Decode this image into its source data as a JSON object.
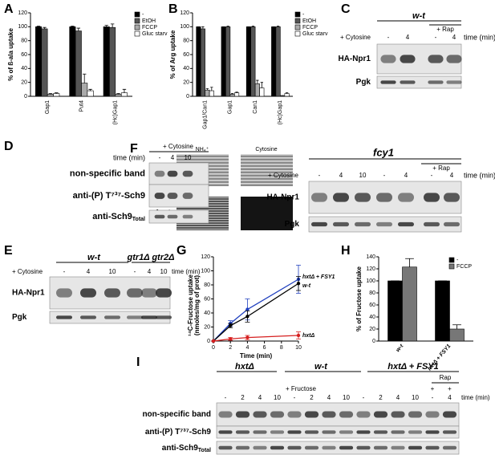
{
  "chart_data": [
    {
      "type": "bar",
      "label": "A",
      "ylabel": "% of ß-ala uptake",
      "categories": [
        "Gap1",
        "Put4",
        "(Hc)Gap1"
      ],
      "series": [
        {
          "name": "-",
          "color": "#000000",
          "values": [
            100,
            100,
            100
          ],
          "errors": [
            1,
            1,
            2
          ]
        },
        {
          "name": "EtOH",
          "color": "#555555",
          "values": [
            97,
            94,
            99
          ],
          "errors": [
            2,
            4,
            5
          ]
        },
        {
          "name": "FCCP",
          "color": "#aaaaaa",
          "values": [
            3,
            19,
            3
          ],
          "errors": [
            1,
            13,
            1
          ]
        },
        {
          "name": "Gluc starv",
          "color": "#ffffff",
          "values": [
            4,
            8,
            5
          ],
          "errors": [
            1,
            2,
            5
          ]
        }
      ],
      "ylim": [
        0,
        120
      ],
      "yticks": [
        0,
        20,
        40,
        60,
        80,
        100,
        120
      ],
      "legend": "right"
    },
    {
      "type": "bar",
      "label": "B",
      "ylabel": "% of Arg uptake",
      "categories": [
        "Gap1/Can1",
        "Gap1",
        "Can1",
        "(Hc)Gap1"
      ],
      "series": [
        {
          "name": "-",
          "color": "#000000",
          "values": [
            100,
            100,
            100,
            100
          ],
          "errors": [
            0,
            0,
            0,
            0
          ]
        },
        {
          "name": "EtOH",
          "color": "#555555",
          "values": [
            97,
            100,
            100,
            100
          ],
          "errors": [
            3,
            1,
            1,
            1
          ]
        },
        {
          "name": "FCCP",
          "color": "#aaaaaa",
          "values": [
            9,
            3,
            18,
            1
          ],
          "errors": [
            2,
            1,
            5,
            0
          ]
        },
        {
          "name": "Gluc starv",
          "color": "#ffffff",
          "values": [
            8,
            5,
            12,
            4
          ],
          "errors": [
            5,
            1,
            8,
            1
          ]
        }
      ],
      "ylim": [
        0,
        120
      ],
      "yticks": [
        0,
        20,
        40,
        60,
        80,
        100,
        120
      ],
      "legend": "right"
    },
    {
      "type": "line",
      "label": "G",
      "ylabel": [
        "¹⁴C-Fructose uptake",
        "(nmoles/mg of prot)"
      ],
      "xlabel": "Time (min)",
      "x": [
        0,
        2,
        4,
        10
      ],
      "xlim": [
        0,
        10
      ],
      "xticks": [
        0,
        2,
        4,
        6,
        8,
        10
      ],
      "series": [
        {
          "name": "hxtΔ + FSY1",
          "color": "#1f3fbf",
          "values": [
            0,
            25,
            45,
            88
          ],
          "errors": [
            0,
            4,
            15,
            20
          ]
        },
        {
          "name": "w-t",
          "color": "#000000",
          "values": [
            0,
            22,
            35,
            82
          ],
          "errors": [
            0,
            3,
            8,
            10
          ]
        },
        {
          "name": "hxtΔ",
          "color": "#d62020",
          "values": [
            0,
            3,
            5,
            8
          ],
          "errors": [
            0,
            2,
            3,
            5
          ]
        }
      ],
      "ylim": [
        0,
        120
      ],
      "yticks": [
        0,
        20,
        40,
        60,
        80,
        100,
        120
      ]
    },
    {
      "type": "bar",
      "label": "H",
      "ylabel": "% of Fructose uptake",
      "categories": [
        "w-t",
        "hxtΔ + FSY1"
      ],
      "series": [
        {
          "name": "-",
          "color": "#000000",
          "values": [
            100,
            100
          ],
          "errors": [
            0,
            0
          ]
        },
        {
          "name": "FCCP",
          "color": "#777777",
          "values": [
            123,
            20
          ],
          "errors": [
            14,
            7
          ]
        }
      ],
      "ylim": [
        0,
        140
      ],
      "yticks": [
        0,
        20,
        40,
        60,
        80,
        100,
        120,
        140
      ],
      "legend": "top-right"
    }
  ],
  "blots": [
    {
      "label": "C",
      "headers": [
        "w-t"
      ],
      "extra": "+ Rap",
      "condition": "+ Cytosine",
      "lanes": [
        "-",
        "4",
        "-",
        "4"
      ],
      "time": "time (min)",
      "rows": [
        "HA-Npr1",
        "Pgk"
      ]
    },
    {
      "label": "D",
      "condition": "+ Cytosine",
      "time": "time (min)",
      "lanes": [
        "-",
        "4",
        "10"
      ],
      "rows": [
        "non-specific band",
        "anti-(P) T⁷³⁷-Sch9",
        {
          "text": "anti-Sch9",
          "sub": "Total"
        }
      ]
    },
    {
      "label": "E",
      "headers": [
        "w-t",
        "gtr1Δ gtr2Δ"
      ],
      "condition": "+ Cytosine",
      "lanes": [
        "-",
        "4",
        "10",
        "-",
        "4",
        "10"
      ],
      "time": "time (min)",
      "rows": [
        "HA-Npr1",
        "Pgk"
      ]
    },
    {
      "label": "F",
      "images": {
        "columns": [
          "NH₄⁺",
          "Cytosine"
        ],
        "rows": [
          "w-t",
          "fcy1"
        ]
      },
      "headers": [
        "fcy1"
      ],
      "extra": "+ Rap",
      "condition": "+ Cytosine",
      "lanes": [
        "-",
        "4",
        "10",
        "-",
        "4",
        "-",
        "4"
      ],
      "time": "time (min)",
      "rows": [
        "HA-Npr1",
        "Pgk"
      ]
    },
    {
      "label": "I",
      "headers": [
        "hxtΔ",
        "w-t",
        "hxtΔ + FSY1"
      ],
      "extra": "Rap",
      "extra_lanes": [
        "+",
        "+"
      ],
      "condition": "+ Fructose",
      "lanes": [
        "-",
        "2",
        "4",
        "10",
        "-",
        "2",
        "4",
        "10",
        "-",
        "2",
        "4",
        "10",
        "-",
        "4"
      ],
      "time": "time (min)",
      "rows": [
        "non-specific band",
        "anti-(P) T⁷³⁷-Sch9",
        {
          "text": "anti-Sch9",
          "sub": "Total"
        }
      ]
    }
  ]
}
